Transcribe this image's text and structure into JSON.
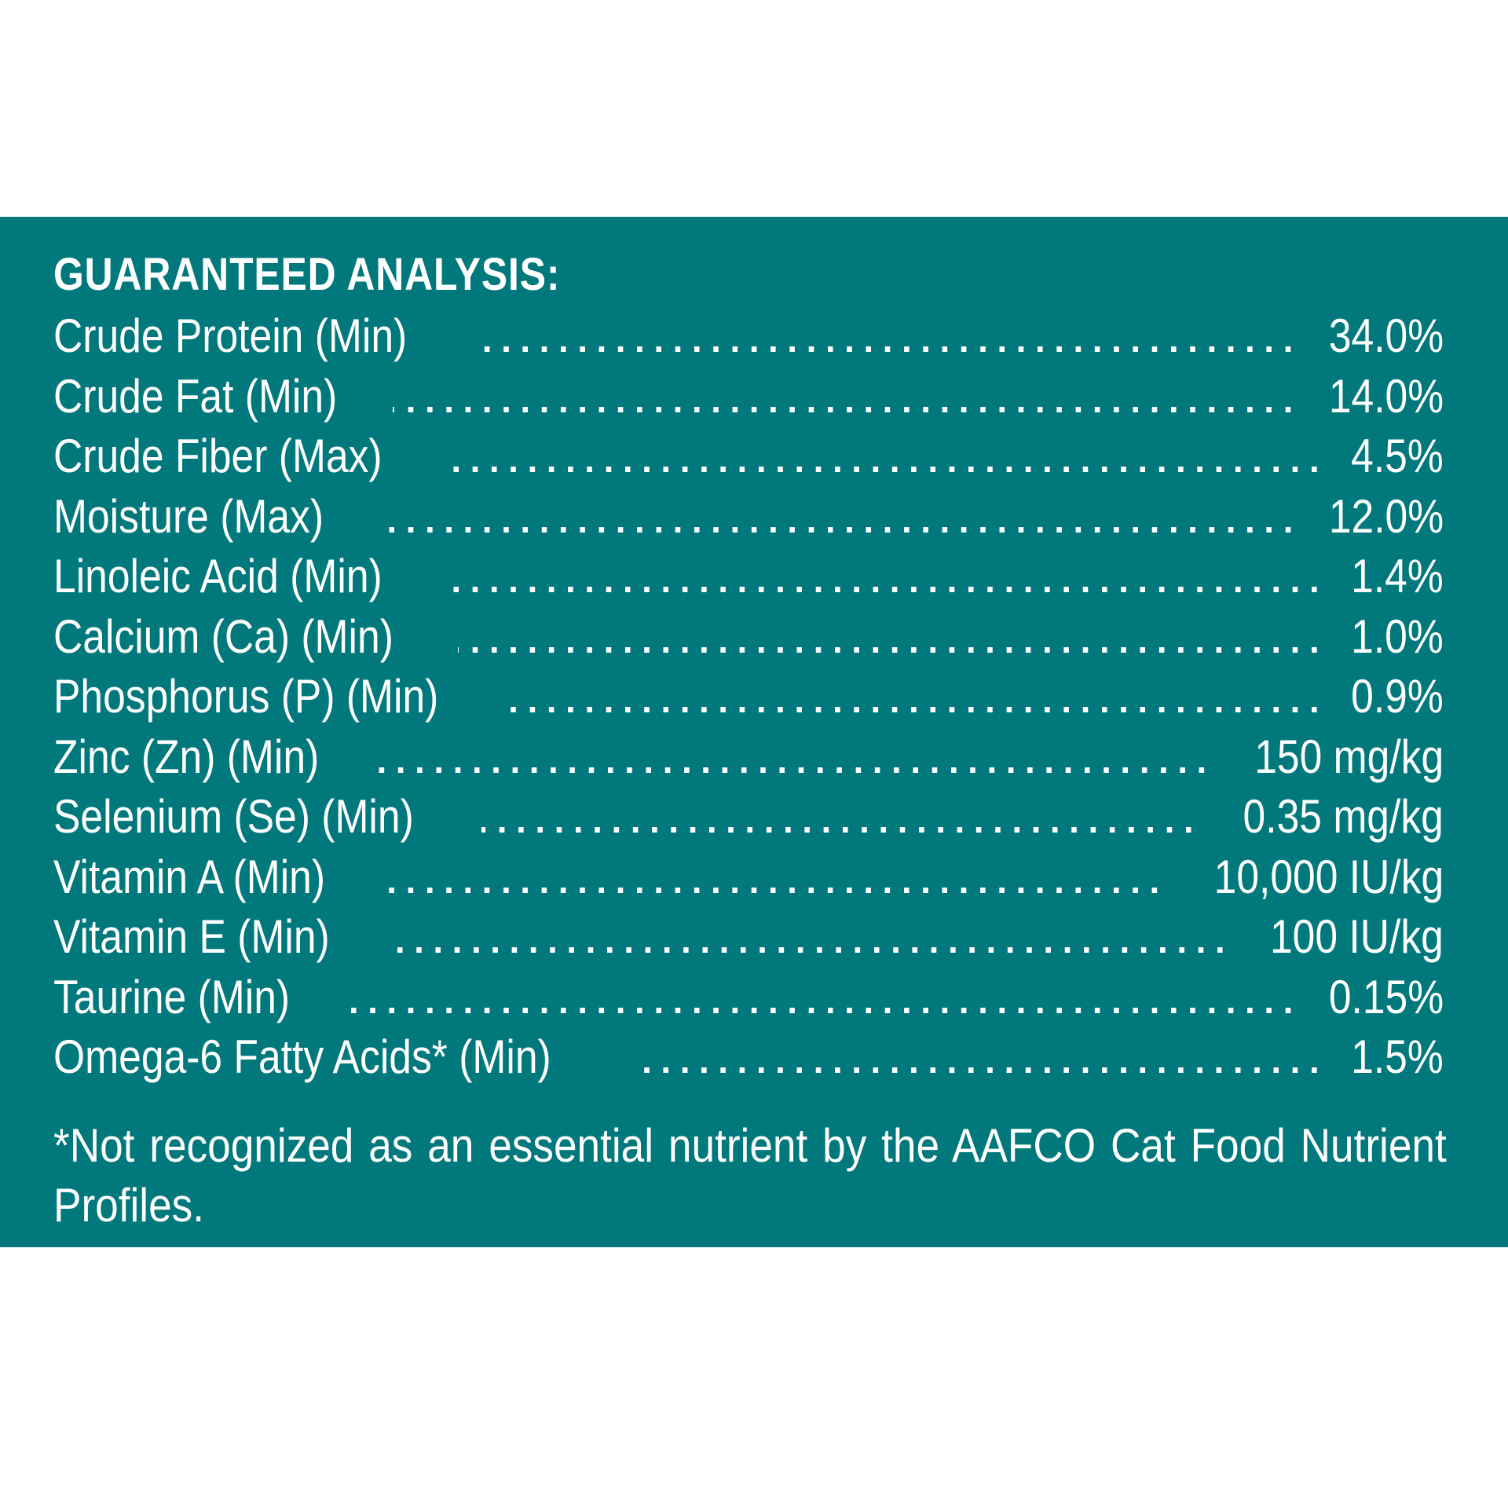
{
  "panel": {
    "heading": "GUARANTEED ANALYSIS:",
    "background_color": "#01787c",
    "text_color": "#ffffff",
    "rows": [
      {
        "label": "Crude Protein (Min)",
        "value": "34.0%"
      },
      {
        "label": "Crude Fat (Min)",
        "value": "14.0%"
      },
      {
        "label": "Crude Fiber (Max)",
        "value": "4.5%"
      },
      {
        "label": "Moisture (Max)",
        "value": "12.0%"
      },
      {
        "label": "Linoleic Acid (Min)",
        "value": "1.4%"
      },
      {
        "label": "Calcium (Ca) (Min)",
        "value": "1.0%"
      },
      {
        "label": "Phosphorus (P) (Min)",
        "value": "0.9%"
      },
      {
        "label": "Zinc (Zn) (Min)",
        "value": "150 mg/kg"
      },
      {
        "label": "Selenium (Se) (Min)",
        "value": "0.35 mg/kg"
      },
      {
        "label": "Vitamin A (Min)",
        "value": "10,000 IU/kg"
      },
      {
        "label": "Vitamin E (Min)",
        "value": "100 IU/kg"
      },
      {
        "label": "Taurine (Min)",
        "value": "0.15%"
      },
      {
        "label": "Omega-6 Fatty Acids* (Min)",
        "value": "1.5%"
      }
    ],
    "footnote": "*Not recognized as an essential nutrient by the AAFCO Cat Food Nutrient Profiles."
  }
}
